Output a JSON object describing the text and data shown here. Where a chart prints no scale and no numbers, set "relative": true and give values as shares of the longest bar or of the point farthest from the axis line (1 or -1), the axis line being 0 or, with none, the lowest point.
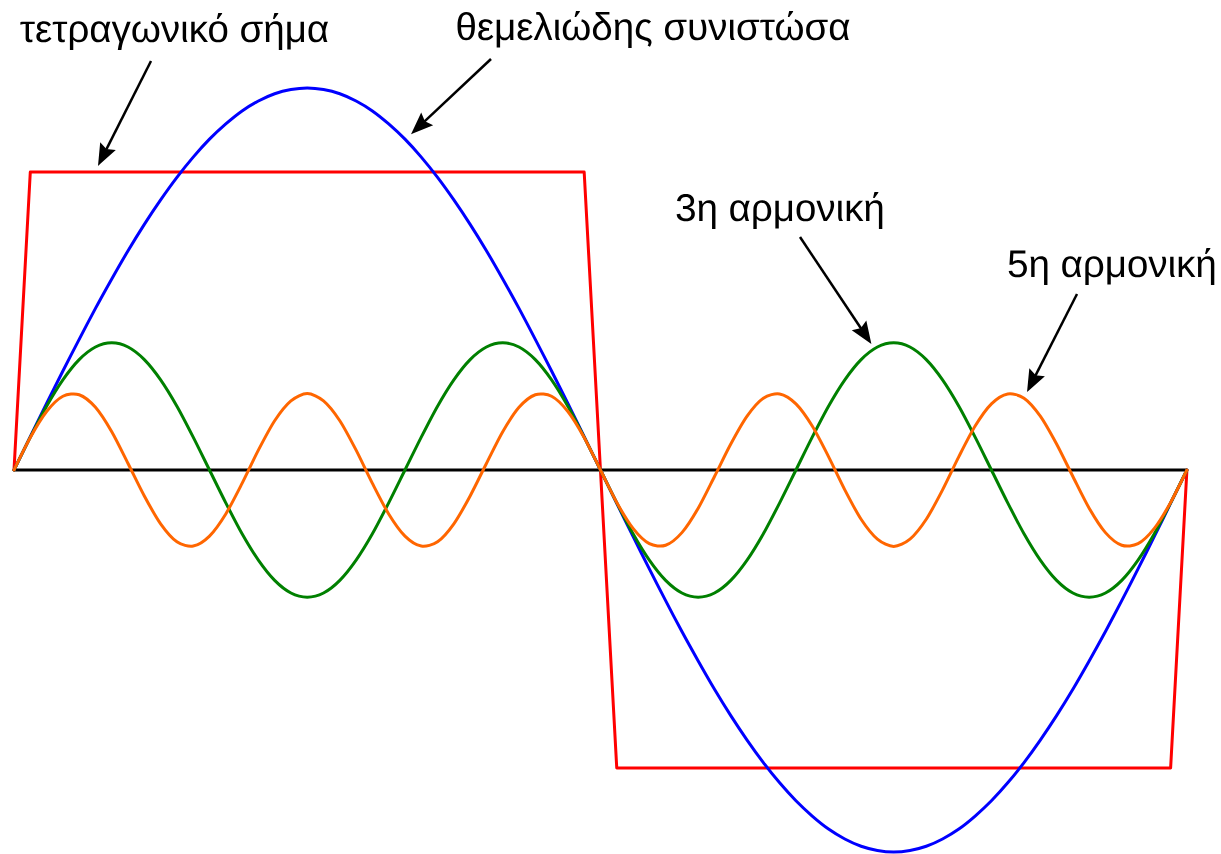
{
  "chart_data": {
    "type": "line",
    "relative": true,
    "categories": [
      null,
      null,
      null,
      null,
      null,
      null,
      null,
      null,
      null,
      null,
      null,
      null,
      null,
      null,
      null,
      null,
      null,
      null,
      null,
      null,
      null,
      null,
      null,
      null,
      null,
      null,
      null,
      null,
      null,
      null,
      null,
      null,
      null,
      null,
      null,
      null,
      null,
      null,
      null,
      null,
      null,
      null,
      null,
      null,
      null,
      null,
      null,
      null,
      null,
      null,
      null,
      null,
      null,
      null,
      null,
      null,
      null,
      null,
      null,
      null,
      null,
      null,
      null,
      null,
      null,
      null,
      null,
      null,
      null,
      null,
      null,
      null,
      null
    ],
    "annotations": [
      "τετραγωνικό σήμα",
      "θεμελιώδης συνιστώσα",
      "3η αρμονική",
      "5η αρμονική"
    ],
    "series": [
      {
        "color": "#ff0000",
        "values": [
          0,
          0.78,
          0.78,
          0.78,
          0.78,
          0.78,
          0.78,
          0.78,
          0.78,
          0.78,
          0.78,
          0.78,
          0.78,
          0.78,
          0.78,
          0.78,
          0.78,
          0.78,
          0.78,
          0.78,
          0.78,
          0.78,
          0.78,
          0.78,
          0.78,
          0.78,
          0.78,
          0.78,
          0.78,
          0.78,
          0.78,
          0.78,
          0.78,
          0.78,
          0.78,
          0.78,
          0,
          -0.78,
          -0.78,
          -0.78,
          -0.78,
          -0.78,
          -0.78,
          -0.78,
          -0.78,
          -0.78,
          -0.78,
          -0.78,
          -0.78,
          -0.78,
          -0.78,
          -0.78,
          -0.78,
          -0.78,
          -0.78,
          -0.78,
          -0.78,
          -0.78,
          -0.78,
          -0.78,
          -0.78,
          -0.78,
          -0.78,
          -0.78,
          -0.78,
          -0.78,
          -0.78,
          -0.78,
          -0.78,
          -0.78,
          -0.78,
          -0.78,
          0
        ]
      },
      {
        "color": "#0000ff",
        "values": [
          0,
          0.087,
          0.174,
          0.259,
          0.342,
          0.423,
          0.5,
          0.574,
          0.643,
          0.707,
          0.766,
          0.819,
          0.866,
          0.906,
          0.94,
          0.966,
          0.985,
          0.996,
          1,
          0.996,
          0.985,
          0.966,
          0.94,
          0.906,
          0.866,
          0.819,
          0.766,
          0.707,
          0.643,
          0.574,
          0.5,
          0.423,
          0.342,
          0.259,
          0.174,
          0.087,
          0,
          -0.087,
          -0.174,
          -0.259,
          -0.342,
          -0.423,
          -0.5,
          -0.574,
          -0.643,
          -0.707,
          -0.766,
          -0.819,
          -0.866,
          -0.906,
          -0.94,
          -0.966,
          -0.985,
          -0.996,
          -1,
          -0.996,
          -0.985,
          -0.966,
          -0.94,
          -0.906,
          -0.866,
          -0.819,
          -0.766,
          -0.707,
          -0.643,
          -0.574,
          -0.5,
          -0.423,
          -0.342,
          -0.259,
          -0.174,
          -0.087,
          0
        ]
      },
      {
        "color": "#008000",
        "values": [
          0,
          0.086,
          0.167,
          0.236,
          0.289,
          0.322,
          0.333,
          0.322,
          0.289,
          0.236,
          0.167,
          0.086,
          0,
          -0.086,
          -0.167,
          -0.236,
          -0.289,
          -0.322,
          -0.333,
          -0.322,
          -0.289,
          -0.236,
          -0.167,
          -0.086,
          0,
          0.086,
          0.167,
          0.236,
          0.289,
          0.322,
          0.333,
          0.322,
          0.289,
          0.236,
          0.167,
          0.086,
          0,
          -0.086,
          -0.167,
          -0.236,
          -0.289,
          -0.322,
          -0.333,
          -0.322,
          -0.289,
          -0.236,
          -0.167,
          -0.086,
          0,
          0.086,
          0.167,
          0.236,
          0.289,
          0.322,
          0.333,
          0.322,
          0.289,
          0.236,
          0.167,
          0.086,
          0,
          -0.086,
          -0.167,
          -0.236,
          -0.289,
          -0.322,
          -0.333,
          -0.322,
          -0.289,
          -0.236,
          -0.167,
          -0.086,
          0
        ]
      },
      {
        "color": "#ff6600",
        "values": [
          0,
          0.085,
          0.153,
          0.193,
          0.197,
          0.164,
          0.1,
          0.017,
          -0.068,
          -0.141,
          -0.188,
          -0.199,
          -0.173,
          -0.115,
          -0.035,
          0.052,
          0.129,
          0.181,
          0.2,
          0.181,
          0.129,
          0.052,
          -0.035,
          -0.115,
          -0.173,
          -0.199,
          -0.188,
          -0.141,
          -0.068,
          0.017,
          0.1,
          0.164,
          0.197,
          0.193,
          0.153,
          0.085,
          0,
          -0.085,
          -0.153,
          -0.193,
          -0.197,
          -0.164,
          -0.1,
          -0.017,
          0.068,
          0.141,
          0.188,
          0.199,
          0.173,
          0.115,
          0.035,
          -0.052,
          -0.129,
          -0.181,
          -0.2,
          -0.181,
          -0.129,
          -0.052,
          0.035,
          0.115,
          0.173,
          0.199,
          0.188,
          0.141,
          0.068,
          -0.017,
          -0.1,
          -0.164,
          -0.197,
          -0.193,
          -0.153,
          -0.085,
          0
        ]
      }
    ]
  }
}
